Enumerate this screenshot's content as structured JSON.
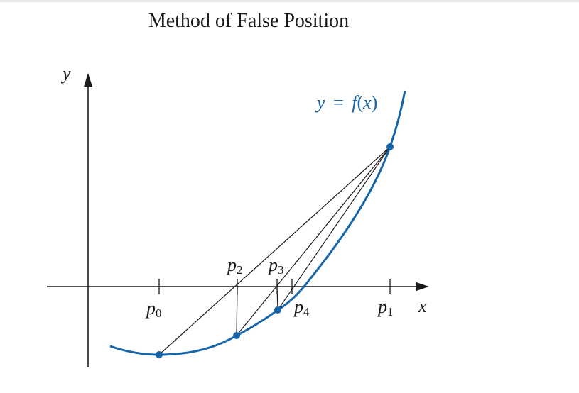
{
  "title": "Method of False Position",
  "axes": {
    "x_label": "x",
    "y_label": "y"
  },
  "curve_label": {
    "lhs": "y",
    "eq": "=",
    "func": "f",
    "open": "(",
    "arg": "x",
    "close": ")"
  },
  "points": [
    {
      "letter": "p",
      "sub": "0"
    },
    {
      "letter": "p",
      "sub": "1"
    },
    {
      "letter": "p",
      "sub": "2"
    },
    {
      "letter": "p",
      "sub": "3"
    },
    {
      "letter": "p",
      "sub": "4"
    }
  ],
  "colors": {
    "curve": "#1565a8",
    "axes": "#1a1a1a",
    "secant": "#1a1a1a",
    "point": "#1565a8"
  }
}
